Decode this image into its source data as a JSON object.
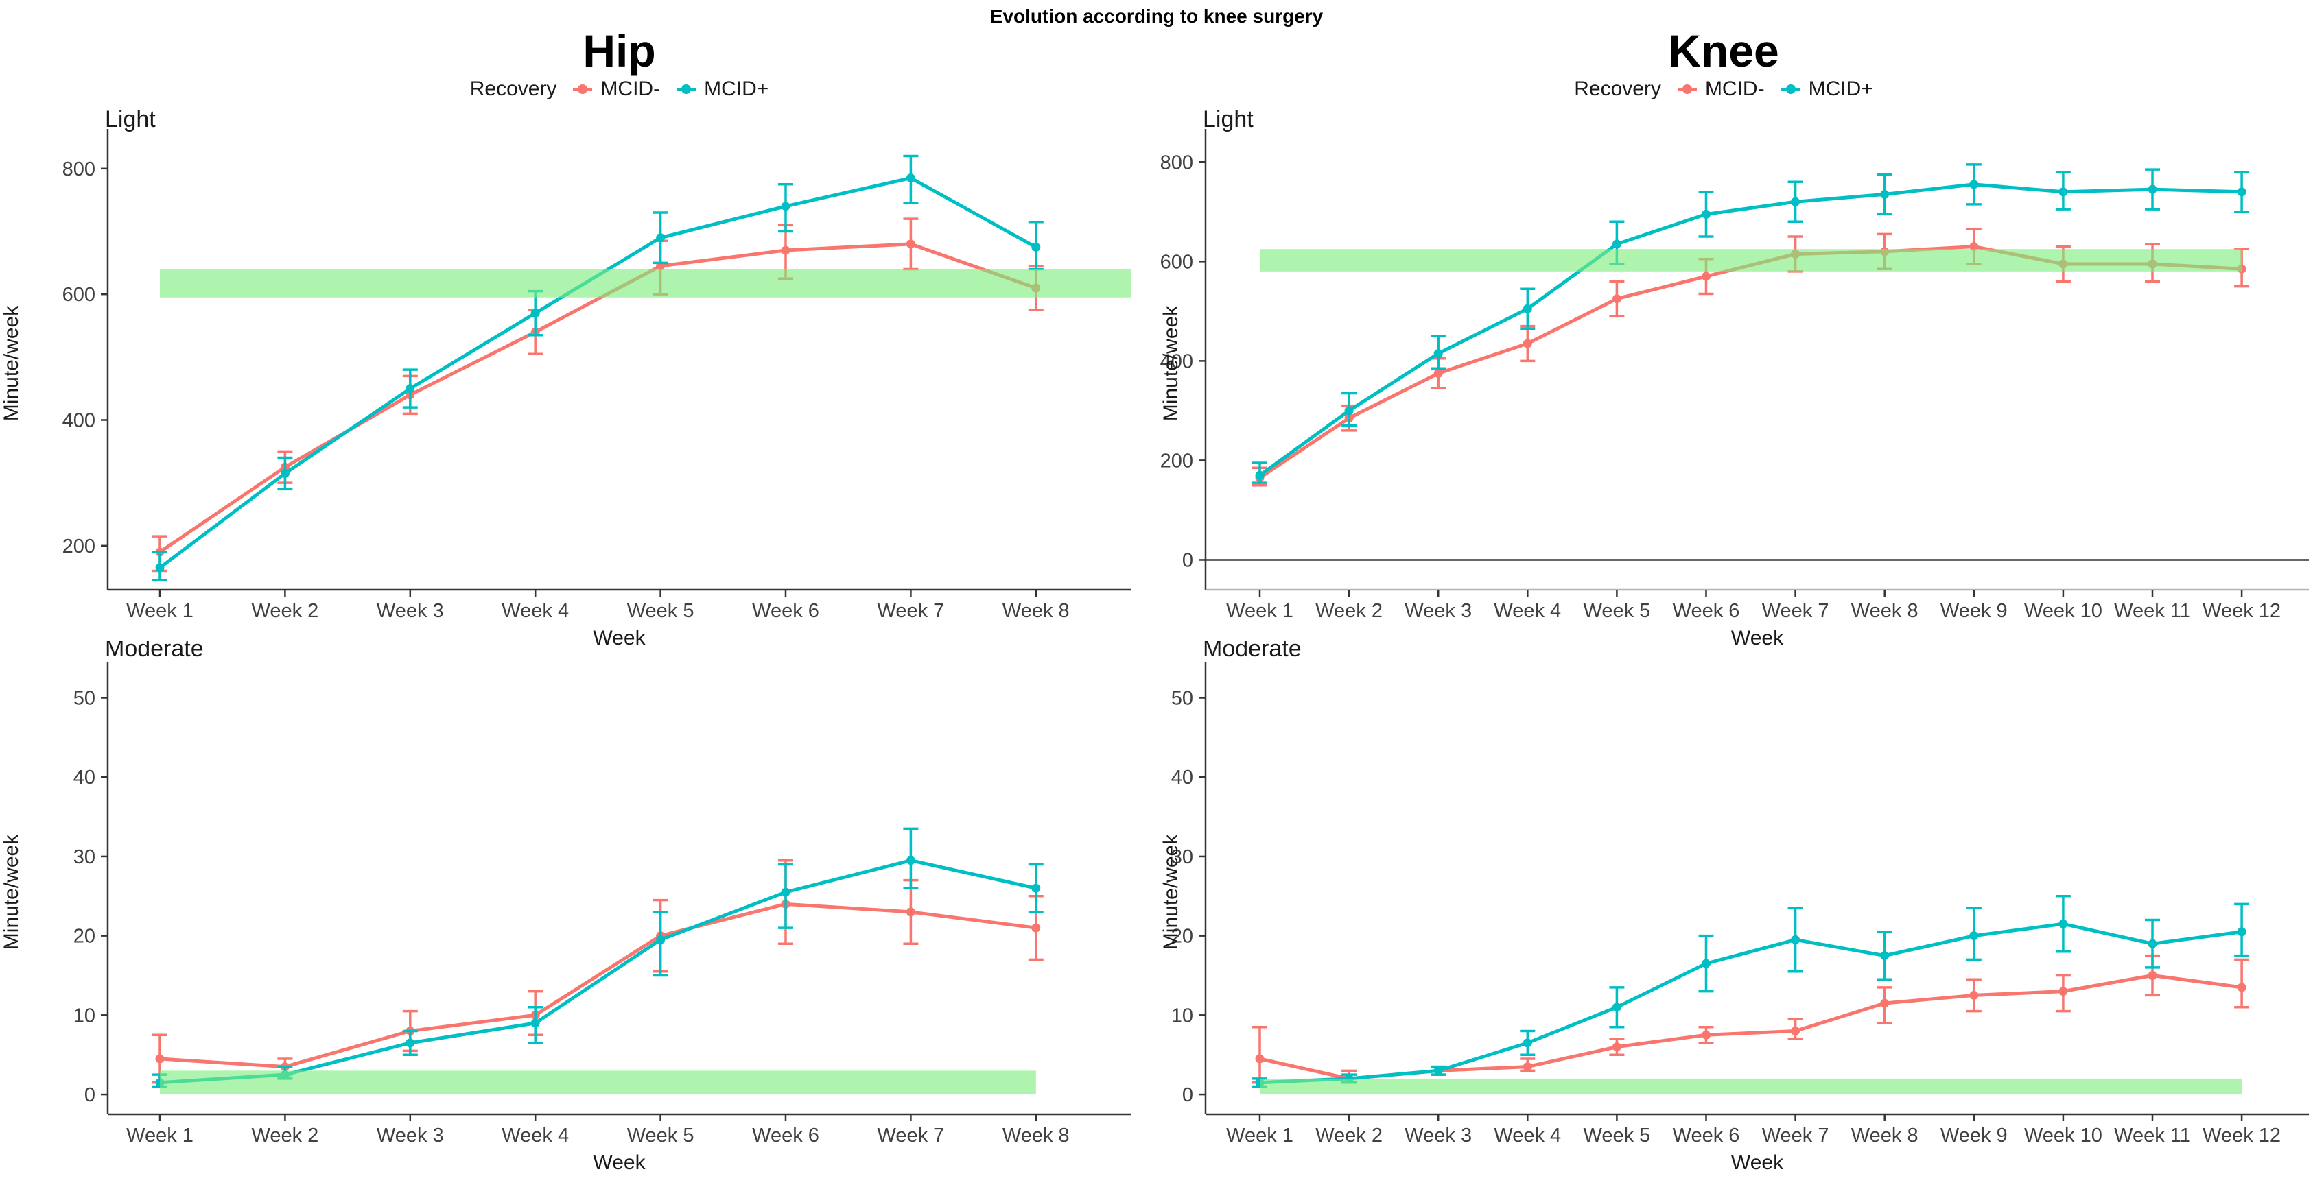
{
  "page_title": "Evolution according to knee surgery",
  "columns": [
    {
      "title": "Hip",
      "legend": {
        "label": "Recovery",
        "series": [
          {
            "name": "MCID-",
            "color": "#F8766D"
          },
          {
            "name": "MCID+",
            "color": "#00BFC4"
          }
        ]
      }
    },
    {
      "title": "Knee",
      "legend": {
        "label": "Recovery",
        "series": [
          {
            "name": "MCID-",
            "color": "#F8766D"
          },
          {
            "name": "MCID+",
            "color": "#00BFC4"
          }
        ]
      }
    }
  ],
  "colors": {
    "mcid_minus": "#F8766D",
    "mcid_plus": "#00BFC4",
    "reference_band": "rgba(124,235,124,0.62)"
  },
  "chart_data": [
    {
      "type": "line",
      "column": "Hip",
      "title": "Light",
      "xlabel": "Week",
      "ylabel": "Minute/week",
      "categories": [
        "Week 1",
        "Week 2",
        "Week 3",
        "Week 4",
        "Week 5",
        "Week 6",
        "Week 7",
        "Week 8"
      ],
      "yticks": [
        200,
        400,
        600,
        800
      ],
      "ylim": [
        130,
        850
      ],
      "zero_line": false,
      "bottom_axis": "dark",
      "reference_band": {
        "ymin": 595,
        "ymax": 640,
        "x_start_week": 1,
        "x_end": "panel-edge"
      },
      "series": [
        {
          "name": "MCID-",
          "color": "#F8766D",
          "values": [
            190,
            325,
            440,
            540,
            645,
            670,
            680,
            610
          ],
          "err_low": [
            160,
            300,
            410,
            505,
            600,
            625,
            640,
            575
          ],
          "err_high": [
            215,
            350,
            470,
            575,
            685,
            710,
            720,
            645
          ]
        },
        {
          "name": "MCID+",
          "color": "#00BFC4",
          "values": [
            165,
            315,
            450,
            570,
            690,
            740,
            785,
            675
          ],
          "err_low": [
            145,
            290,
            420,
            535,
            650,
            700,
            745,
            640
          ],
          "err_high": [
            190,
            340,
            480,
            605,
            730,
            775,
            820,
            715
          ]
        }
      ]
    },
    {
      "type": "line",
      "column": "Knee",
      "title": "Light",
      "xlabel": "Week",
      "ylabel": "Minute/week",
      "categories": [
        "Week 1",
        "Week 2",
        "Week 3",
        "Week 4",
        "Week 5",
        "Week 6",
        "Week 7",
        "Week 8",
        "Week 9",
        "Week 10",
        "Week 11",
        "Week 12"
      ],
      "yticks": [
        0,
        200,
        400,
        600,
        800
      ],
      "ylim": [
        -60,
        850
      ],
      "zero_line": true,
      "bottom_axis": "light",
      "reference_band": {
        "ymin": 580,
        "ymax": 625,
        "x_start_week": 1,
        "x_end": "last-week"
      },
      "series": [
        {
          "name": "MCID-",
          "color": "#F8766D",
          "values": [
            165,
            285,
            375,
            435,
            525,
            570,
            615,
            620,
            630,
            595,
            595,
            585
          ],
          "err_low": [
            150,
            260,
            345,
            400,
            490,
            535,
            580,
            585,
            595,
            560,
            560,
            550
          ],
          "err_high": [
            185,
            310,
            405,
            470,
            560,
            605,
            650,
            655,
            665,
            630,
            635,
            625
          ]
        },
        {
          "name": "MCID+",
          "color": "#00BFC4",
          "values": [
            170,
            300,
            415,
            505,
            635,
            695,
            720,
            735,
            755,
            740,
            745,
            740
          ],
          "err_low": [
            155,
            270,
            385,
            465,
            595,
            650,
            680,
            695,
            715,
            705,
            705,
            700
          ],
          "err_high": [
            195,
            335,
            450,
            545,
            680,
            740,
            760,
            775,
            795,
            780,
            785,
            780
          ]
        }
      ]
    },
    {
      "type": "line",
      "column": "Hip",
      "title": "Moderate",
      "xlabel": "Week",
      "ylabel": "Minute/week",
      "categories": [
        "Week 1",
        "Week 2",
        "Week 3",
        "Week 4",
        "Week 5",
        "Week 6",
        "Week 7",
        "Week 8"
      ],
      "yticks": [
        0,
        10,
        20,
        30,
        40,
        50
      ],
      "ylim": [
        -2.5,
        53.5
      ],
      "zero_line": false,
      "bottom_axis": "dark",
      "reference_band": {
        "ymin": 0,
        "ymax": 3,
        "x_start_week": 1,
        "x_end": "last-week"
      },
      "series": [
        {
          "name": "MCID-",
          "color": "#F8766D",
          "values": [
            4.5,
            3.5,
            8,
            10,
            20,
            24,
            23,
            21
          ],
          "err_low": [
            1.5,
            2.5,
            5.5,
            7.5,
            15.5,
            19,
            19,
            17
          ],
          "err_high": [
            7.5,
            4.5,
            10.5,
            13,
            24.5,
            29.5,
            27,
            25
          ]
        },
        {
          "name": "MCID+",
          "color": "#00BFC4",
          "values": [
            1.5,
            2.5,
            6.5,
            9,
            19.5,
            25.5,
            29.5,
            26
          ],
          "err_low": [
            1,
            2,
            5,
            6.5,
            15,
            21,
            26,
            23
          ],
          "err_high": [
            2.5,
            3.5,
            8,
            11,
            23,
            29,
            33.5,
            29
          ]
        }
      ]
    },
    {
      "type": "line",
      "column": "Knee",
      "title": "Moderate",
      "xlabel": "Week",
      "ylabel": "Minute/week",
      "categories": [
        "Week 1",
        "Week 2",
        "Week 3",
        "Week 4",
        "Week 5",
        "Week 6",
        "Week 7",
        "Week 8",
        "Week 9",
        "Week 10",
        "Week 11",
        "Week 12"
      ],
      "yticks": [
        0,
        10,
        20,
        30,
        40,
        50
      ],
      "ylim": [
        -2.5,
        53.5
      ],
      "zero_line": false,
      "bottom_axis": "dark",
      "reference_band": {
        "ymin": 0,
        "ymax": 2,
        "x_start_week": 1,
        "x_end": "last-week"
      },
      "series": [
        {
          "name": "MCID-",
          "color": "#F8766D",
          "values": [
            4.5,
            2,
            3,
            3.5,
            6,
            7.5,
            8,
            11.5,
            12.5,
            13,
            15,
            13.5
          ],
          "err_low": [
            1.5,
            1.5,
            2.5,
            3,
            5,
            6.5,
            7,
            9,
            10.5,
            10.5,
            12.5,
            11
          ],
          "err_high": [
            8.5,
            3,
            3.5,
            4.5,
            7,
            8.5,
            9.5,
            13.5,
            14.5,
            15,
            17.5,
            17
          ]
        },
        {
          "name": "MCID+",
          "color": "#00BFC4",
          "values": [
            1.5,
            2,
            3,
            6.5,
            11,
            16.5,
            19.5,
            17.5,
            20,
            21.5,
            19,
            20.5
          ],
          "err_low": [
            1,
            1.5,
            2.5,
            5,
            8.5,
            13,
            15.5,
            14.5,
            17,
            18,
            16,
            17.5
          ],
          "err_high": [
            2,
            2.5,
            3.5,
            8,
            13.5,
            20,
            23.5,
            20.5,
            23.5,
            25,
            22,
            24
          ]
        }
      ]
    }
  ]
}
